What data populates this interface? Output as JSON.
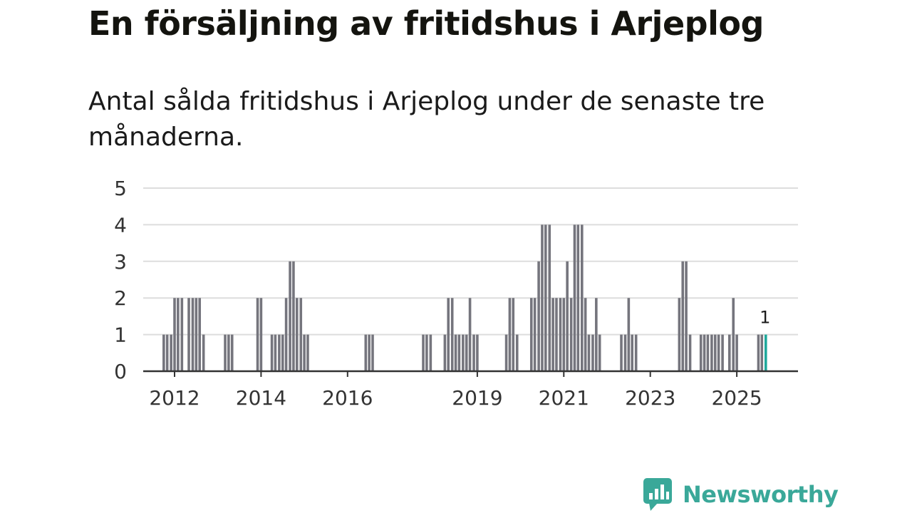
{
  "header": {
    "title": "En försäljning av fritidshus i Arjeplog",
    "subtitle": "Antal sålda fritidshus i Arjeplog under de senaste tre månaderna."
  },
  "brand": {
    "name": "Newsworthy"
  },
  "colors": {
    "bar": "#75757d",
    "highlight": "#1fa89b",
    "brand": "#3aa899",
    "grid": "#dddddd",
    "axis": "#333333"
  },
  "chart_data": {
    "type": "bar",
    "title": "Antal sålda fritidshus i Arjeplog under de senaste tre månaderna.",
    "xlabel": "",
    "ylabel": "",
    "ylim": [
      0,
      5
    ],
    "yticks": [
      0,
      1,
      2,
      3,
      4,
      5
    ],
    "x_range": [
      2011.0,
      2026.3
    ],
    "x_tick_labels": [
      "2012",
      "2014",
      "2016",
      "2019",
      "2021",
      "2023",
      "2025"
    ],
    "x_tick_values": [
      2012.0,
      2014.0,
      2016.0,
      2019.0,
      2021.0,
      2023.0,
      2025.0
    ],
    "highlight_label": "1",
    "x": [
      2011.75,
      2011.83,
      2011.92,
      2012.0,
      2012.08,
      2012.17,
      2012.25,
      2012.33,
      2012.42,
      2012.5,
      2012.58,
      2012.67,
      2012.75,
      2012.83,
      2013.17,
      2013.25,
      2013.33,
      2013.92,
      2014.0,
      2014.25,
      2014.33,
      2014.42,
      2014.5,
      2014.58,
      2014.67,
      2014.75,
      2014.83,
      2014.92,
      2015.0,
      2015.08,
      2015.17,
      2016.42,
      2016.5,
      2016.58,
      2017.75,
      2017.83,
      2017.92,
      2018.25,
      2018.33,
      2018.42,
      2018.5,
      2018.58,
      2018.67,
      2018.75,
      2018.83,
      2018.92,
      2019.0,
      2019.67,
      2019.75,
      2019.83,
      2019.92,
      2020.25,
      2020.33,
      2020.42,
      2020.5,
      2020.58,
      2020.67,
      2020.75,
      2020.83,
      2020.92,
      2021.0,
      2021.08,
      2021.17,
      2021.25,
      2021.33,
      2021.42,
      2021.5,
      2021.58,
      2021.67,
      2021.75,
      2021.83,
      2021.92,
      2022.33,
      2022.42,
      2022.5,
      2022.58,
      2022.67,
      2023.67,
      2023.75,
      2023.83,
      2023.92,
      2024.17,
      2024.25,
      2024.33,
      2024.42,
      2024.5,
      2024.58,
      2024.67,
      2024.83,
      2024.92,
      2025.0,
      2025.5,
      2025.58,
      2025.67
    ],
    "values": [
      1,
      1,
      1,
      2,
      2,
      2,
      0,
      2,
      2,
      2,
      2,
      1,
      0,
      0,
      1,
      1,
      1,
      2,
      2,
      1,
      1,
      1,
      1,
      2,
      3,
      3,
      2,
      2,
      1,
      1,
      0,
      1,
      1,
      1,
      1,
      1,
      1,
      1,
      2,
      2,
      1,
      1,
      1,
      1,
      2,
      1,
      1,
      1,
      2,
      2,
      1,
      2,
      2,
      3,
      4,
      4,
      4,
      2,
      2,
      2,
      2,
      3,
      2,
      4,
      4,
      4,
      2,
      1,
      1,
      2,
      1,
      0,
      1,
      1,
      2,
      1,
      1,
      2,
      3,
      3,
      1,
      1,
      1,
      1,
      1,
      1,
      1,
      1,
      1,
      2,
      1,
      1,
      1,
      1
    ],
    "highlight_index": 93
  }
}
